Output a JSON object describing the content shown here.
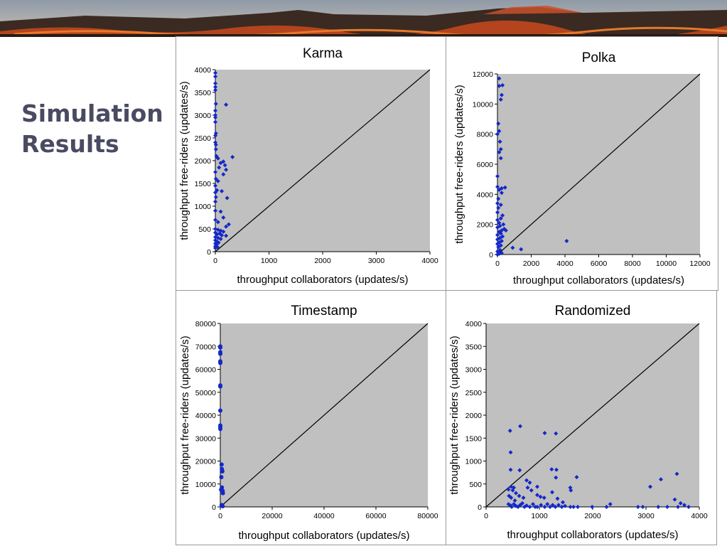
{
  "slide": {
    "title_line1": "Simulation",
    "title_line2": "Results"
  },
  "banner": {
    "image": "volcano-lava-banner"
  },
  "colors": {
    "plot_bg": "#c0c0c0",
    "marker": "#1428c8",
    "diagonal": "#000000"
  },
  "chart_data": [
    {
      "type": "scatter",
      "title": "Karma",
      "xlabel": "throughput collaborators (updates/s)",
      "ylabel": "throughput free-riders (updates/s)",
      "xlim": [
        0,
        4000
      ],
      "ylim": [
        0,
        4000
      ],
      "xticks": [
        "0",
        "1000",
        "2000",
        "3000",
        "4000"
      ],
      "yticks": [
        "0",
        "500",
        "1000",
        "1500",
        "2000",
        "2500",
        "3000",
        "3500",
        "4000"
      ],
      "diagonal": true,
      "grid": false,
      "marker": "diamond",
      "points": [
        [
          0,
          3930
        ],
        [
          0,
          3850
        ],
        [
          0,
          3700
        ],
        [
          0,
          3620
        ],
        [
          0,
          3550
        ],
        [
          10,
          3250
        ],
        [
          200,
          3230
        ],
        [
          0,
          3100
        ],
        [
          0,
          3000
        ],
        [
          0,
          2950
        ],
        [
          0,
          2850
        ],
        [
          10,
          2600
        ],
        [
          0,
          2550
        ],
        [
          0,
          2400
        ],
        [
          10,
          2350
        ],
        [
          10,
          2250
        ],
        [
          20,
          2100
        ],
        [
          320,
          2080
        ],
        [
          50,
          2050
        ],
        [
          150,
          1980
        ],
        [
          100,
          1950
        ],
        [
          180,
          1900
        ],
        [
          70,
          1850
        ],
        [
          200,
          1800
        ],
        [
          0,
          1750
        ],
        [
          150,
          1700
        ],
        [
          10,
          1600
        ],
        [
          50,
          1550
        ],
        [
          0,
          1450
        ],
        [
          30,
          1350
        ],
        [
          120,
          1330
        ],
        [
          0,
          1300
        ],
        [
          10,
          1200
        ],
        [
          220,
          1180
        ],
        [
          0,
          1100
        ],
        [
          0,
          900
        ],
        [
          100,
          880
        ],
        [
          150,
          750
        ],
        [
          0,
          700
        ],
        [
          50,
          650
        ],
        [
          250,
          600
        ],
        [
          200,
          550
        ],
        [
          0,
          500
        ],
        [
          50,
          480
        ],
        [
          100,
          460
        ],
        [
          150,
          440
        ],
        [
          0,
          420
        ],
        [
          80,
          400
        ],
        [
          30,
          380
        ],
        [
          120,
          360
        ],
        [
          200,
          350
        ],
        [
          0,
          320
        ],
        [
          50,
          300
        ],
        [
          100,
          280
        ],
        [
          0,
          250
        ],
        [
          30,
          220
        ],
        [
          60,
          200
        ],
        [
          0,
          180
        ],
        [
          20,
          150
        ],
        [
          0,
          120
        ],
        [
          40,
          100
        ],
        [
          0,
          80
        ]
      ]
    },
    {
      "type": "scatter",
      "title": "Polka",
      "xlabel": "throughput collaborators (updates/s)",
      "ylabel": "throughput free-riders (updates/s)",
      "xlim": [
        0,
        12000
      ],
      "ylim": [
        0,
        12000
      ],
      "xticks": [
        "0",
        "2000",
        "4000",
        "6000",
        "8000",
        "10000",
        "12000"
      ],
      "yticks": [
        "0",
        "2000",
        "4000",
        "6000",
        "8000",
        "10000",
        "12000"
      ],
      "diagonal": true,
      "grid": false,
      "marker": "diamond",
      "points": [
        [
          100,
          11700
        ],
        [
          300,
          11250
        ],
        [
          100,
          11200
        ],
        [
          250,
          10600
        ],
        [
          200,
          10300
        ],
        [
          50,
          8700
        ],
        [
          100,
          8200
        ],
        [
          0,
          8000
        ],
        [
          150,
          7500
        ],
        [
          200,
          7000
        ],
        [
          100,
          6800
        ],
        [
          200,
          6400
        ],
        [
          0,
          5200
        ],
        [
          0,
          4500
        ],
        [
          450,
          4450
        ],
        [
          250,
          4400
        ],
        [
          100,
          4300
        ],
        [
          250,
          4100
        ],
        [
          50,
          3700
        ],
        [
          0,
          3400
        ],
        [
          200,
          3300
        ],
        [
          50,
          3100
        ],
        [
          0,
          2800
        ],
        [
          300,
          2600
        ],
        [
          200,
          2400
        ],
        [
          0,
          2300
        ],
        [
          100,
          2100
        ],
        [
          350,
          2000
        ],
        [
          150,
          1900
        ],
        [
          0,
          1800
        ],
        [
          400,
          1700
        ],
        [
          250,
          1600
        ],
        [
          500,
          1600
        ],
        [
          100,
          1500
        ],
        [
          200,
          1400
        ],
        [
          0,
          1300
        ],
        [
          300,
          1200
        ],
        [
          150,
          1100
        ],
        [
          0,
          1000
        ],
        [
          250,
          900
        ],
        [
          4100,
          900
        ],
        [
          100,
          800
        ],
        [
          0,
          700
        ],
        [
          200,
          600
        ],
        [
          50,
          500
        ],
        [
          900,
          450
        ],
        [
          1400,
          350
        ],
        [
          150,
          300
        ],
        [
          0,
          200
        ],
        [
          250,
          100
        ],
        [
          100,
          50
        ],
        [
          0,
          0
        ]
      ]
    },
    {
      "type": "scatter",
      "title": "Timestamp",
      "xlabel": "throughput collaborators (updates/s)",
      "ylabel": "throughput free-riders (updates/s)",
      "xlim": [
        0,
        80000
      ],
      "ylim": [
        0,
        80000
      ],
      "xticks": [
        "0",
        "20000",
        "40000",
        "60000",
        "80000"
      ],
      "yticks": [
        "0",
        "10000",
        "20000",
        "30000",
        "40000",
        "50000",
        "60000",
        "70000",
        "80000"
      ],
      "diagonal": true,
      "grid": false,
      "marker": "circle",
      "points": [
        [
          0,
          70000
        ],
        [
          0,
          69500
        ],
        [
          0,
          67500
        ],
        [
          0,
          66800
        ],
        [
          0,
          63500
        ],
        [
          0,
          62800
        ],
        [
          0,
          53000
        ],
        [
          0,
          52500
        ],
        [
          0,
          42000
        ],
        [
          0,
          35500
        ],
        [
          0,
          34800
        ],
        [
          0,
          34000
        ],
        [
          500,
          18500
        ],
        [
          600,
          16500
        ],
        [
          800,
          15500
        ],
        [
          400,
          13000
        ],
        [
          600,
          8500
        ],
        [
          300,
          7500
        ],
        [
          900,
          7000
        ],
        [
          1000,
          6000
        ],
        [
          500,
          800
        ],
        [
          700,
          500
        ],
        [
          900,
          300
        ]
      ]
    },
    {
      "type": "scatter",
      "title": "Randomized",
      "xlabel": "throughput collaborators (updates/s)",
      "ylabel": "throughput free-riders (updates/s)",
      "xlim": [
        0,
        4000
      ],
      "ylim": [
        0,
        4000
      ],
      "xticks": [
        "0",
        "1000",
        "2000",
        "3000",
        "4000"
      ],
      "yticks": [
        "0",
        "500",
        "1000",
        "1500",
        "2000",
        "2500",
        "3000",
        "3500",
        "4000"
      ],
      "diagonal": true,
      "grid": false,
      "marker": "diamond",
      "points": [
        [
          640,
          1760
        ],
        [
          450,
          1660
        ],
        [
          1100,
          1610
        ],
        [
          1310,
          1600
        ],
        [
          460,
          1190
        ],
        [
          460,
          810
        ],
        [
          630,
          800
        ],
        [
          1230,
          820
        ],
        [
          1320,
          810
        ],
        [
          1310,
          640
        ],
        [
          1700,
          650
        ],
        [
          1580,
          420
        ],
        [
          1590,
          360
        ],
        [
          3280,
          600
        ],
        [
          3580,
          720
        ],
        [
          3080,
          440
        ],
        [
          420,
          380
        ],
        [
          470,
          440
        ],
        [
          520,
          420
        ],
        [
          760,
          580
        ],
        [
          820,
          530
        ],
        [
          960,
          440
        ],
        [
          500,
          360
        ],
        [
          560,
          300
        ],
        [
          620,
          240
        ],
        [
          700,
          200
        ],
        [
          430,
          240
        ],
        [
          470,
          200
        ],
        [
          540,
          140
        ],
        [
          1020,
          220
        ],
        [
          1090,
          200
        ],
        [
          960,
          260
        ],
        [
          780,
          420
        ],
        [
          850,
          360
        ],
        [
          1240,
          320
        ],
        [
          1340,
          180
        ],
        [
          1440,
          100
        ],
        [
          3540,
          160
        ],
        [
          3720,
          40
        ],
        [
          3800,
          0
        ],
        [
          3650,
          80
        ],
        [
          2260,
          0
        ],
        [
          2330,
          60
        ],
        [
          1990,
          0
        ],
        [
          2850,
          0
        ],
        [
          2940,
          0
        ],
        [
          3230,
          0
        ],
        [
          3400,
          0
        ],
        [
          3600,
          0
        ],
        [
          420,
          60
        ],
        [
          460,
          30
        ],
        [
          480,
          0
        ],
        [
          520,
          60
        ],
        [
          560,
          20
        ],
        [
          600,
          0
        ],
        [
          640,
          40
        ],
        [
          680,
          80
        ],
        [
          720,
          0
        ],
        [
          760,
          30
        ],
        [
          820,
          0
        ],
        [
          880,
          60
        ],
        [
          920,
          0
        ],
        [
          960,
          0
        ],
        [
          1030,
          40
        ],
        [
          1100,
          0
        ],
        [
          1150,
          60
        ],
        [
          1200,
          0
        ],
        [
          1250,
          40
        ],
        [
          1300,
          0
        ],
        [
          1360,
          40
        ],
        [
          1420,
          0
        ],
        [
          1480,
          20
        ],
        [
          1580,
          0
        ],
        [
          1640,
          0
        ],
        [
          1720,
          0
        ]
      ]
    }
  ]
}
